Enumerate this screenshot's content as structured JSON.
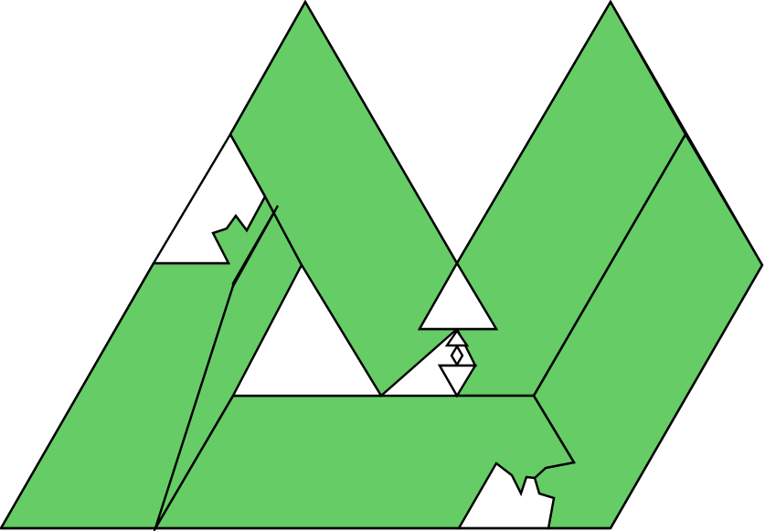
{
  "figure": {
    "fill_color": "#66cc66",
    "outline_color": "#000000",
    "background_color": "#ffffff",
    "shapes": [
      "left-diagonal-band",
      "left-lower-band",
      "bottom-band",
      "center-left-band",
      "center-right-band",
      "right-band",
      "right-outer-band"
    ],
    "cutouts": [
      "upper-left-jagged-notch",
      "bottom-jagged-notch",
      "inner-triangle-left",
      "center-triangle-large",
      "center-triangle-small",
      "center-diamond-small",
      "center-triangle-tiny"
    ]
  }
}
